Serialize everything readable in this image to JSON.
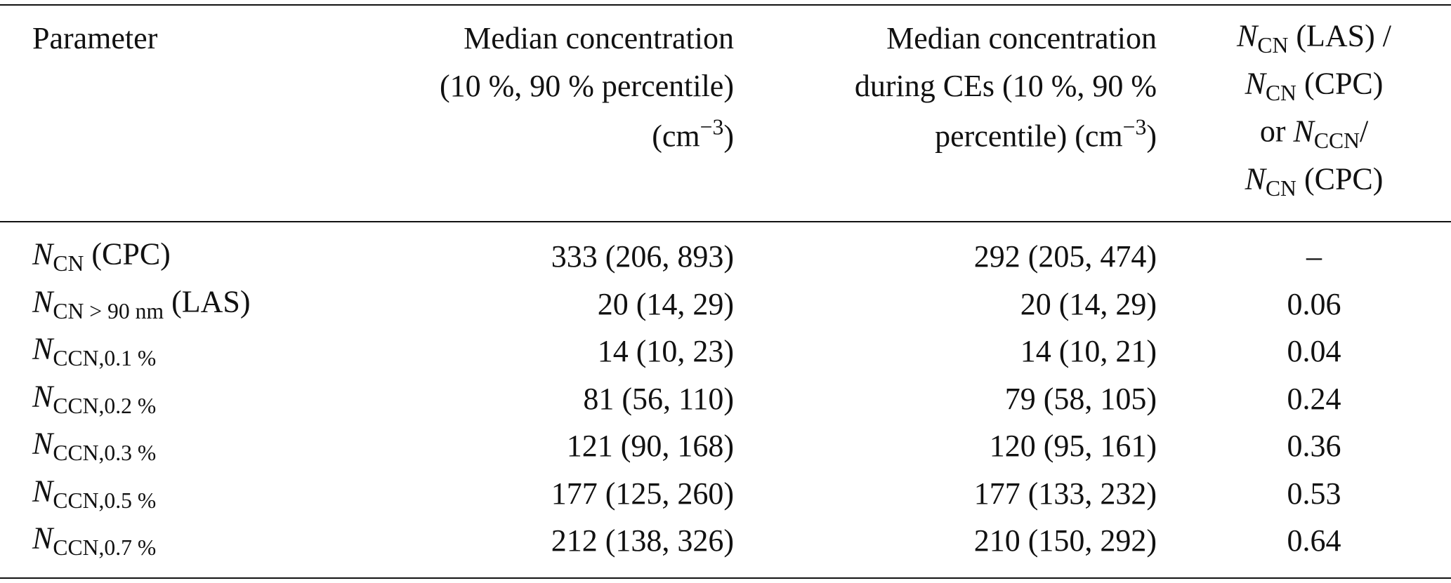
{
  "header": {
    "columns": [
      {
        "lines": [
          [
            {
              "text": "Parameter"
            }
          ]
        ]
      },
      {
        "lines": [
          [
            {
              "text": "Median concentration"
            }
          ],
          [
            {
              "text": "(10 %, 90 % percentile)"
            }
          ],
          [
            {
              "text": "(cm"
            },
            {
              "sup": "−3"
            },
            {
              "text": ")"
            }
          ]
        ]
      },
      {
        "lines": [
          [
            {
              "text": "Median concentration"
            }
          ],
          [
            {
              "text": "during CEs (10 %, 90 %"
            }
          ],
          [
            {
              "text": "percentile) (cm"
            },
            {
              "sup": "−3"
            },
            {
              "text": ")"
            }
          ]
        ]
      },
      {
        "lines": [
          [
            {
              "italic": "N"
            },
            {
              "sub": "CN"
            },
            {
              "text": " (LAS) /"
            }
          ],
          [
            {
              "italic": "N"
            },
            {
              "sub": "CN"
            },
            {
              "text": " (CPC)"
            }
          ],
          [
            {
              "text": "or "
            },
            {
              "italic": "N"
            },
            {
              "sub": "CCN"
            },
            {
              "text": "/"
            }
          ],
          [
            {
              "italic": "N"
            },
            {
              "sub": "CN"
            },
            {
              "text": " (CPC)"
            }
          ]
        ]
      }
    ]
  },
  "table": {
    "rows": [
      [
        [
          {
            "italic": "N"
          },
          {
            "sub": "CN"
          },
          {
            "text": " (CPC)"
          }
        ],
        "333 (206, 893)",
        "292 (205, 474)",
        "–"
      ],
      [
        [
          {
            "italic": "N"
          },
          {
            "sub": "CN > 90 nm"
          },
          {
            "text": " (LAS)"
          }
        ],
        "20 (14, 29)",
        "20 (14, 29)",
        "0.06"
      ],
      [
        [
          {
            "italic": "N"
          },
          {
            "sub": "CCN,0.1 %"
          }
        ],
        "14 (10, 23)",
        "14 (10, 21)",
        "0.04"
      ],
      [
        [
          {
            "italic": "N"
          },
          {
            "sub": "CCN,0.2 %"
          }
        ],
        "81 (56, 110)",
        "79 (58, 105)",
        "0.24"
      ],
      [
        [
          {
            "italic": "N"
          },
          {
            "sub": "CCN,0.3 %"
          }
        ],
        "121 (90, 168)",
        "120 (95, 161)",
        "0.36"
      ],
      [
        [
          {
            "italic": "N"
          },
          {
            "sub": "CCN,0.5 %"
          }
        ],
        "177 (125, 260)",
        "177 (133, 232)",
        "0.53"
      ],
      [
        [
          {
            "italic": "N"
          },
          {
            "sub": "CCN,0.7 %"
          }
        ],
        "212 (138, 326)",
        "210 (150, 292)",
        "0.64"
      ]
    ]
  }
}
